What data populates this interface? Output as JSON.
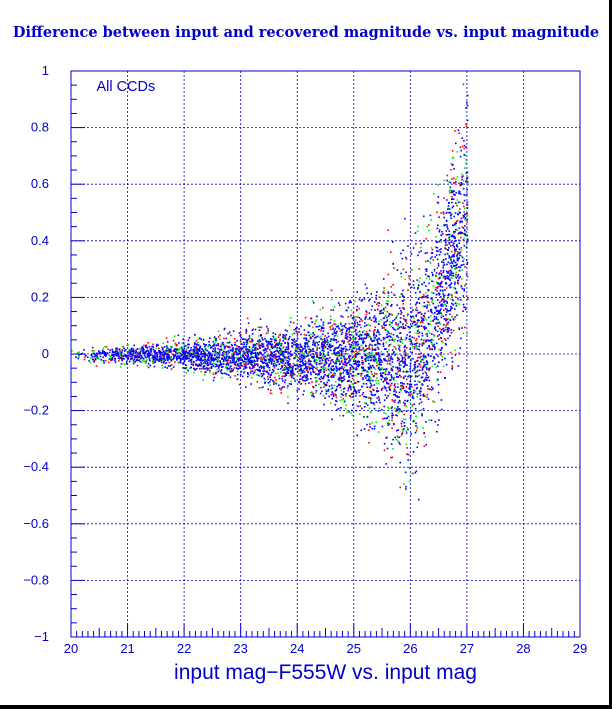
{
  "chart_data": {
    "type": "scatter",
    "title": "Difference between input and recovered magnitude vs. input magnitude",
    "xlabel": "input mag−F555W vs. input mag",
    "ylabel": "",
    "annotation": "All CCDs",
    "xlim": [
      20,
      29
    ],
    "ylim": [
      -1,
      1
    ],
    "xticks": [
      "20",
      "21",
      "22",
      "23",
      "24",
      "25",
      "26",
      "27",
      "28",
      "29"
    ],
    "yticks": [
      "1",
      "0.8",
      "0.6",
      "0.4",
      "0.2",
      "0",
      "−0.2",
      "−0.4",
      "−0.6",
      "−0.8",
      "−1"
    ],
    "grid": true,
    "series": [
      {
        "color": "#ff0000",
        "envelope": {
          "x": [
            20.0,
            21.0,
            22.0,
            23.0,
            24.0,
            24.5,
            25.0,
            25.5,
            26.0,
            26.3,
            26.6,
            26.8,
            27.0
          ],
          "upper": [
            0.02,
            0.04,
            0.06,
            0.09,
            0.13,
            0.17,
            0.22,
            0.3,
            0.4,
            0.5,
            0.62,
            0.8,
            1.0
          ],
          "lower": [
            -0.02,
            -0.04,
            -0.06,
            -0.1,
            -0.14,
            -0.18,
            -0.24,
            -0.32,
            -0.42,
            -0.3,
            -0.1,
            0.0,
            0.1
          ]
        }
      },
      {
        "color": "#00ee00",
        "envelope": {
          "x": [
            20.0,
            21.0,
            22.0,
            23.0,
            24.0,
            24.5,
            25.0,
            25.5,
            26.0,
            26.3,
            26.6,
            26.8,
            27.0
          ],
          "upper": [
            0.02,
            0.04,
            0.06,
            0.09,
            0.13,
            0.17,
            0.22,
            0.3,
            0.4,
            0.5,
            0.62,
            0.8,
            1.0
          ],
          "lower": [
            -0.02,
            -0.04,
            -0.06,
            -0.1,
            -0.14,
            -0.18,
            -0.24,
            -0.32,
            -0.42,
            -0.3,
            -0.1,
            0.0,
            0.1
          ]
        }
      },
      {
        "color": "#0000ff",
        "envelope": {
          "x": [
            20.0,
            21.0,
            22.0,
            23.0,
            24.0,
            24.5,
            25.0,
            25.5,
            26.0,
            26.3,
            26.6,
            26.8,
            27.0
          ],
          "upper": [
            0.02,
            0.03,
            0.05,
            0.08,
            0.11,
            0.15,
            0.2,
            0.27,
            0.36,
            0.45,
            0.58,
            0.75,
            0.95
          ],
          "lower": [
            -0.02,
            -0.03,
            -0.05,
            -0.09,
            -0.13,
            -0.17,
            -0.22,
            -0.3,
            -0.38,
            -0.28,
            -0.1,
            0.0,
            0.1
          ]
        }
      }
    ]
  }
}
